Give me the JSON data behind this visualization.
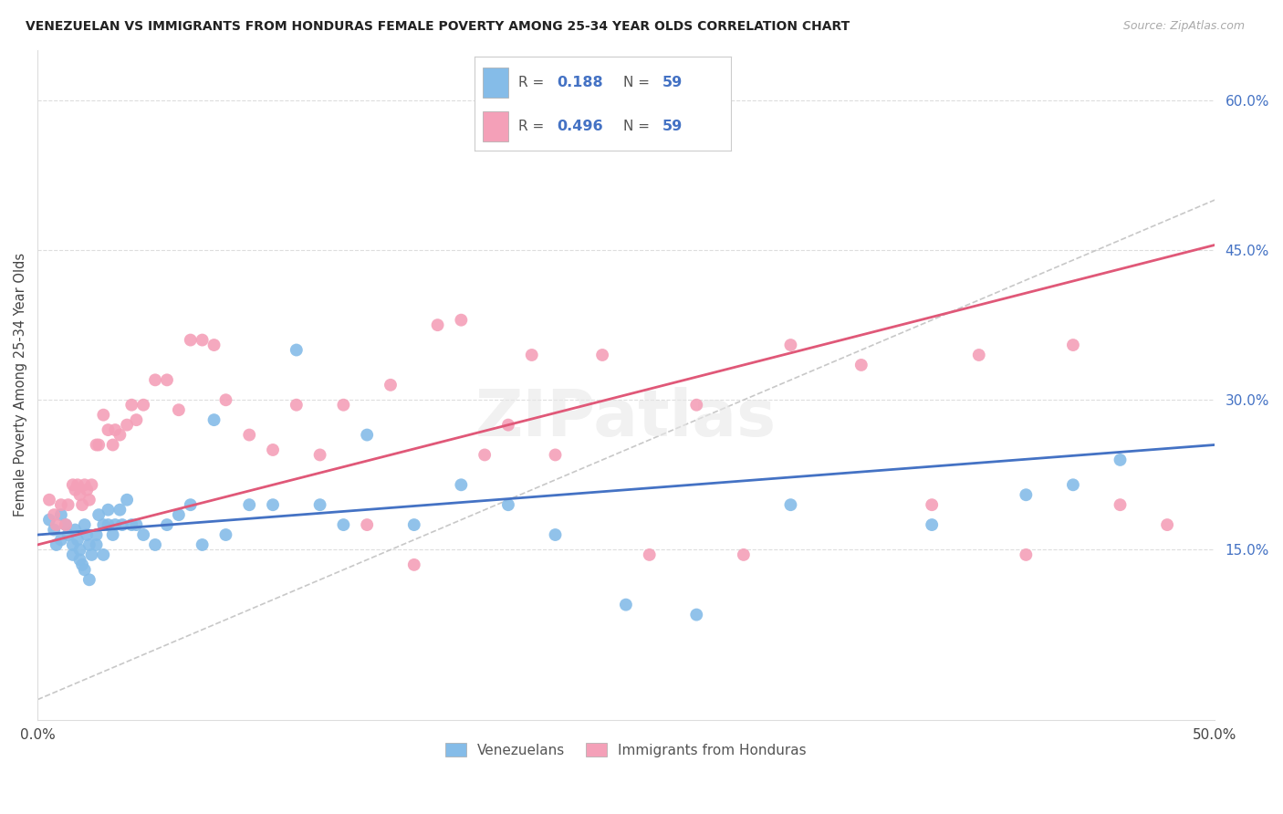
{
  "title": "VENEZUELAN VS IMMIGRANTS FROM HONDURAS FEMALE POVERTY AMONG 25-34 YEAR OLDS CORRELATION CHART",
  "source": "Source: ZipAtlas.com",
  "ylabel": "Female Poverty Among 25-34 Year Olds",
  "xlabel_venezuelans": "Venezuelans",
  "xlabel_honduras": "Immigrants from Honduras",
  "xlim": [
    0.0,
    0.5
  ],
  "ylim": [
    -0.02,
    0.65
  ],
  "x_ticks": [
    0.0,
    0.1,
    0.2,
    0.3,
    0.4,
    0.5
  ],
  "x_tick_labels": [
    "0.0%",
    "",
    "",
    "",
    "",
    "50.0%"
  ],
  "y_ticks_right": [
    0.15,
    0.3,
    0.45,
    0.6
  ],
  "y_tick_labels_right": [
    "15.0%",
    "30.0%",
    "45.0%",
    "60.0%"
  ],
  "R_venezuelan": "0.188",
  "N_venezuelan": "59",
  "R_honduras": "0.496",
  "N_honduras": "59",
  "color_venezuelan": "#85bce8",
  "color_honduras": "#f4a0b8",
  "line_color_venezuelan": "#4472c4",
  "line_color_honduras": "#e05878",
  "diagonal_color": "#c8c8c8",
  "background_color": "#ffffff",
  "grid_color": "#dddddd",
  "venezuelan_x": [
    0.005,
    0.007,
    0.008,
    0.01,
    0.01,
    0.012,
    0.013,
    0.015,
    0.015,
    0.016,
    0.017,
    0.018,
    0.018,
    0.019,
    0.02,
    0.02,
    0.021,
    0.022,
    0.022,
    0.023,
    0.025,
    0.025,
    0.026,
    0.028,
    0.028,
    0.03,
    0.03,
    0.032,
    0.033,
    0.035,
    0.036,
    0.038,
    0.04,
    0.042,
    0.045,
    0.05,
    0.055,
    0.06,
    0.065,
    0.07,
    0.075,
    0.08,
    0.09,
    0.1,
    0.11,
    0.12,
    0.13,
    0.14,
    0.16,
    0.18,
    0.2,
    0.22,
    0.25,
    0.28,
    0.32,
    0.38,
    0.42,
    0.44,
    0.46
  ],
  "venezuelan_y": [
    0.18,
    0.17,
    0.155,
    0.16,
    0.185,
    0.175,
    0.165,
    0.155,
    0.145,
    0.17,
    0.16,
    0.15,
    0.14,
    0.135,
    0.175,
    0.13,
    0.165,
    0.155,
    0.12,
    0.145,
    0.165,
    0.155,
    0.185,
    0.145,
    0.175,
    0.175,
    0.19,
    0.165,
    0.175,
    0.19,
    0.175,
    0.2,
    0.175,
    0.175,
    0.165,
    0.155,
    0.175,
    0.185,
    0.195,
    0.155,
    0.28,
    0.165,
    0.195,
    0.195,
    0.35,
    0.195,
    0.175,
    0.265,
    0.175,
    0.215,
    0.195,
    0.165,
    0.095,
    0.085,
    0.195,
    0.175,
    0.205,
    0.215,
    0.24
  ],
  "honduras_x": [
    0.005,
    0.007,
    0.008,
    0.01,
    0.012,
    0.013,
    0.015,
    0.016,
    0.017,
    0.018,
    0.019,
    0.02,
    0.021,
    0.022,
    0.023,
    0.025,
    0.026,
    0.028,
    0.03,
    0.032,
    0.033,
    0.035,
    0.038,
    0.04,
    0.042,
    0.045,
    0.05,
    0.055,
    0.06,
    0.065,
    0.07,
    0.075,
    0.08,
    0.09,
    0.1,
    0.11,
    0.12,
    0.13,
    0.14,
    0.15,
    0.16,
    0.17,
    0.18,
    0.19,
    0.2,
    0.21,
    0.22,
    0.24,
    0.26,
    0.28,
    0.3,
    0.32,
    0.35,
    0.38,
    0.4,
    0.42,
    0.44,
    0.46,
    0.48
  ],
  "honduras_y": [
    0.2,
    0.185,
    0.175,
    0.195,
    0.175,
    0.195,
    0.215,
    0.21,
    0.215,
    0.205,
    0.195,
    0.215,
    0.21,
    0.2,
    0.215,
    0.255,
    0.255,
    0.285,
    0.27,
    0.255,
    0.27,
    0.265,
    0.275,
    0.295,
    0.28,
    0.295,
    0.32,
    0.32,
    0.29,
    0.36,
    0.36,
    0.355,
    0.3,
    0.265,
    0.25,
    0.295,
    0.245,
    0.295,
    0.175,
    0.315,
    0.135,
    0.375,
    0.38,
    0.245,
    0.275,
    0.345,
    0.245,
    0.345,
    0.145,
    0.295,
    0.145,
    0.355,
    0.335,
    0.195,
    0.345,
    0.145,
    0.355,
    0.195,
    0.175
  ],
  "ven_line_x0": 0.0,
  "ven_line_x1": 0.5,
  "ven_line_y0": 0.165,
  "ven_line_y1": 0.255,
  "hon_line_x0": 0.0,
  "hon_line_x1": 0.5,
  "hon_line_y0": 0.155,
  "hon_line_y1": 0.455
}
